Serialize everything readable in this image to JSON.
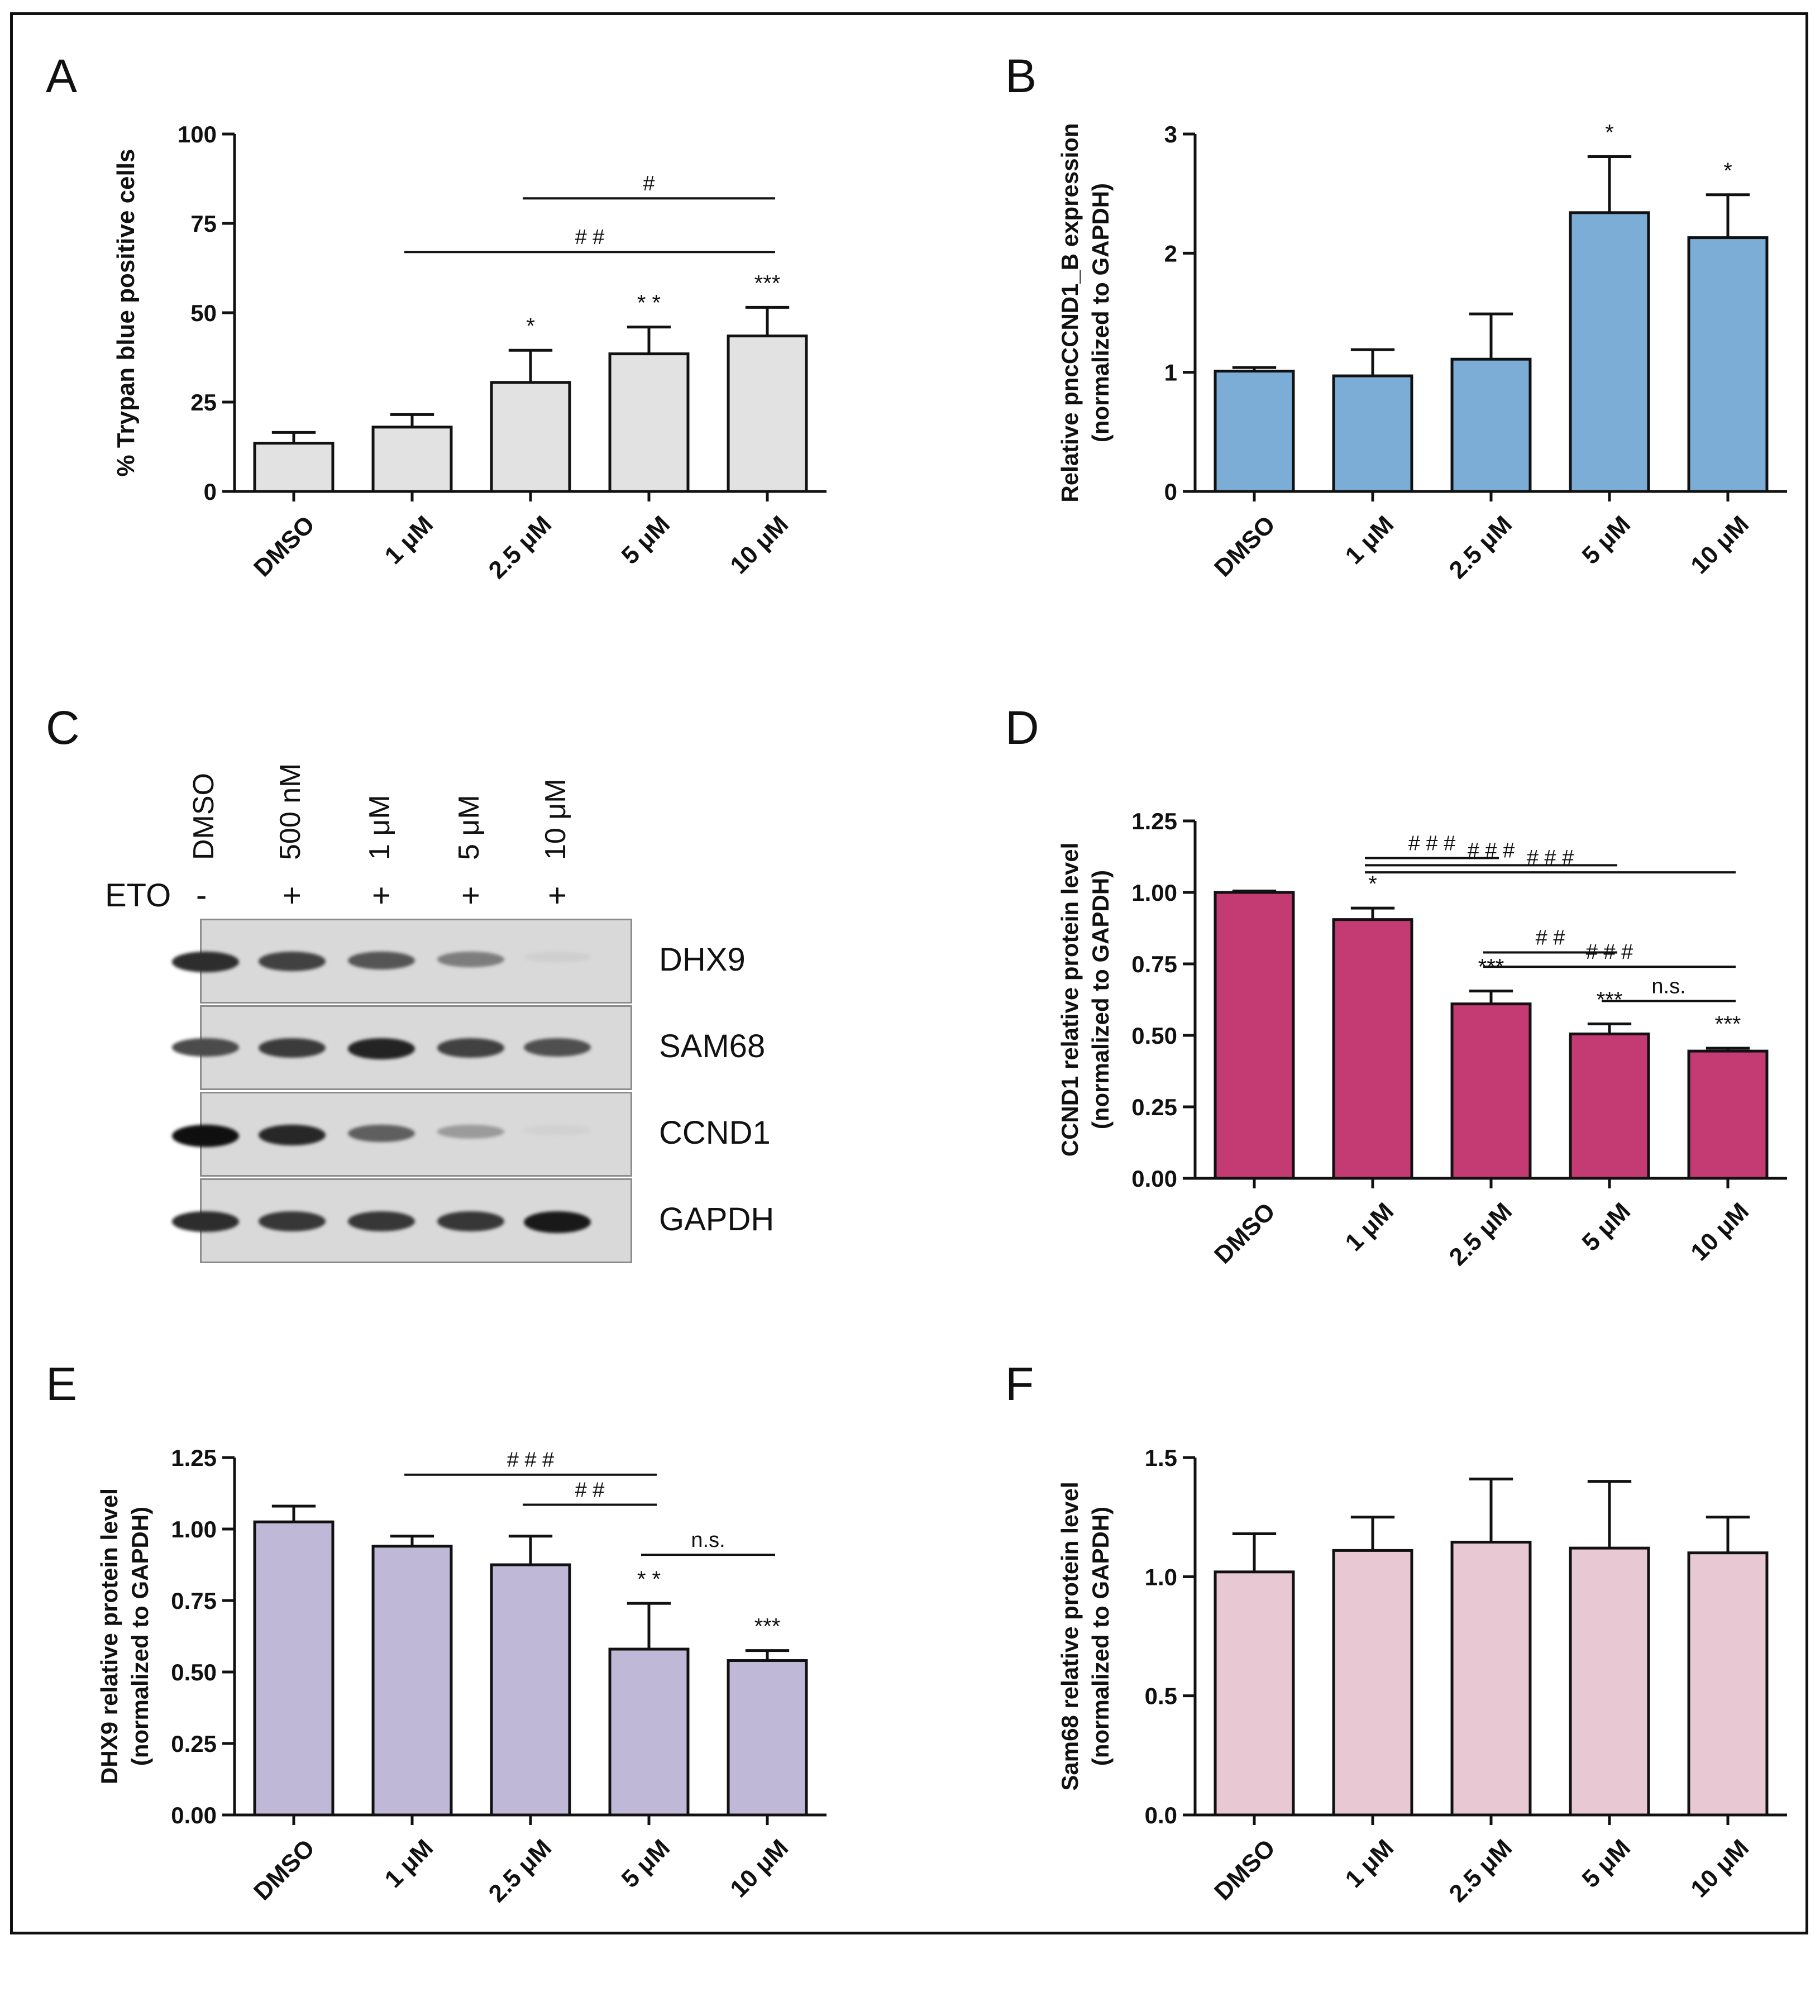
{
  "panels": {
    "A": {
      "label": "A"
    },
    "B": {
      "label": "B"
    },
    "C": {
      "label": "C"
    },
    "D": {
      "label": "D"
    },
    "E": {
      "label": "E"
    },
    "F": {
      "label": "F"
    }
  },
  "chart_data": [
    {
      "id": "A",
      "type": "bar",
      "categories": [
        "DMSO",
        "1 μM",
        "2.5 μM",
        "5 μM",
        "10 μM"
      ],
      "values": [
        13.5,
        18,
        30.5,
        38.5,
        43.5
      ],
      "errors": [
        3,
        3.5,
        9,
        7.5,
        8
      ],
      "significance": [
        "",
        "",
        "*",
        "* *",
        "***"
      ],
      "brackets": [
        {
          "from": 2,
          "to": 4,
          "label": "#",
          "y": 82
        },
        {
          "from": 1,
          "to": 4,
          "label": "# #",
          "y": 67
        }
      ],
      "ylabel": "% Trypan blue positive cells",
      "ylim": [
        0,
        100
      ],
      "yticks": [
        0,
        25,
        50,
        75,
        100
      ],
      "ytick_labels": [
        "0",
        "25",
        "50",
        "75",
        "100"
      ],
      "bar_color": "#e2e2e2"
    },
    {
      "id": "B",
      "type": "bar",
      "categories": [
        "DMSO",
        "1 μM",
        "2.5 μM",
        "5 μM",
        "10 μM"
      ],
      "values": [
        1.01,
        0.97,
        1.11,
        2.34,
        2.13
      ],
      "errors": [
        0.03,
        0.22,
        0.38,
        0.47,
        0.36
      ],
      "significance": [
        "",
        "",
        "",
        "*",
        "*"
      ],
      "brackets": [],
      "ylabel_line1": "Relative pncCCND1_B expression",
      "ylabel_line2": "(normalized to GAPDH)",
      "ylim": [
        0,
        3
      ],
      "yticks": [
        0,
        1,
        2,
        3
      ],
      "ytick_labels": [
        "0",
        "1",
        "2",
        "3"
      ],
      "bar_color": "#7badd6"
    },
    {
      "id": "D",
      "type": "bar",
      "categories": [
        "DMSO",
        "1 μM",
        "2.5 μM",
        "5 μM",
        "10 μM"
      ],
      "values": [
        1.0,
        0.905,
        0.61,
        0.505,
        0.445
      ],
      "errors": [
        0.005,
        0.04,
        0.045,
        0.035,
        0.01
      ],
      "significance": [
        "",
        "*",
        "***",
        "***",
        "***"
      ],
      "brackets": [
        {
          "from": 1,
          "to": 2,
          "label": "# # #",
          "y": 1.12
        },
        {
          "from": 1,
          "to": 3,
          "label": "# # #",
          "y": 1.095
        },
        {
          "from": 1,
          "to": 4,
          "label": "# # #",
          "y": 1.07
        },
        {
          "from": 2,
          "to": 3,
          "label": "# #",
          "y": 0.79
        },
        {
          "from": 2,
          "to": 4,
          "label": "# # #",
          "y": 0.74
        },
        {
          "from": 3,
          "to": 4,
          "label": "n.s.",
          "y": 0.62
        }
      ],
      "ylabel_line1": "CCND1 relative protein level",
      "ylabel_line2": "(normalized to GAPDH)",
      "ylim": [
        0,
        1.25
      ],
      "yticks": [
        0,
        0.25,
        0.5,
        0.75,
        1.0,
        1.25
      ],
      "ytick_labels": [
        "0.00",
        "0.25",
        "0.50",
        "0.75",
        "1.00",
        "1.25"
      ],
      "bar_color": "#c43a72"
    },
    {
      "id": "E",
      "type": "bar",
      "categories": [
        "DMSO",
        "1 μM",
        "2.5 μM",
        "5 μM",
        "10 μM"
      ],
      "values": [
        1.025,
        0.94,
        0.875,
        0.58,
        0.54
      ],
      "errors": [
        0.055,
        0.035,
        0.1,
        0.16,
        0.035
      ],
      "significance": [
        "",
        "",
        "",
        "* *",
        "***"
      ],
      "brackets": [
        {
          "from": 1,
          "to": 3,
          "label": "# # #",
          "y": 1.19
        },
        {
          "from": 2,
          "to": 3,
          "label": "# #",
          "y": 1.085
        },
        {
          "from": 3,
          "to": 4,
          "label": "n.s.",
          "y": 0.91
        }
      ],
      "ylabel_line1": "DHX9 relative protein level",
      "ylabel_line2": "(normalized to GAPDH)",
      "ylim": [
        0,
        1.25
      ],
      "yticks": [
        0,
        0.25,
        0.5,
        0.75,
        1.0,
        1.25
      ],
      "ytick_labels": [
        "0.00",
        "0.25",
        "0.50",
        "0.75",
        "1.00",
        "1.25"
      ],
      "bar_color": "#bfb8d6"
    },
    {
      "id": "F",
      "type": "bar",
      "categories": [
        "DMSO",
        "1 μM",
        "2.5 μM",
        "5 μM",
        "10 μM"
      ],
      "values": [
        1.02,
        1.11,
        1.145,
        1.12,
        1.1
      ],
      "errors": [
        0.16,
        0.14,
        0.265,
        0.28,
        0.15
      ],
      "significance": [
        "",
        "",
        "",
        "",
        ""
      ],
      "brackets": [],
      "ylabel_line1": "Sam68 relative protein level",
      "ylabel_line2": "(normalized to GAPDH)",
      "ylim": [
        0,
        1.5
      ],
      "yticks": [
        0,
        0.5,
        1.0,
        1.5
      ],
      "ytick_labels": [
        "0.0",
        "0.5",
        "1.0",
        "1.5"
      ],
      "bar_color": "#e8c8d3"
    }
  ],
  "western_blot": {
    "columns": [
      "DMSO",
      "500 nM",
      "1 μM",
      "5 μM",
      "10 μM"
    ],
    "treatment_label": "ETO",
    "treatment_signs": [
      "-",
      "+",
      "+",
      "+",
      "+"
    ],
    "rows": [
      {
        "name": "DHX9",
        "intensities": [
          0.85,
          0.75,
          0.65,
          0.45,
          0.04
        ]
      },
      {
        "name": "SAM68",
        "intensities": [
          0.7,
          0.78,
          0.9,
          0.75,
          0.68
        ]
      },
      {
        "name": "CCND1",
        "intensities": [
          1.0,
          0.88,
          0.6,
          0.3,
          0.03
        ]
      },
      {
        "name": "GAPDH",
        "intensities": [
          0.85,
          0.8,
          0.8,
          0.8,
          0.95
        ]
      }
    ]
  }
}
